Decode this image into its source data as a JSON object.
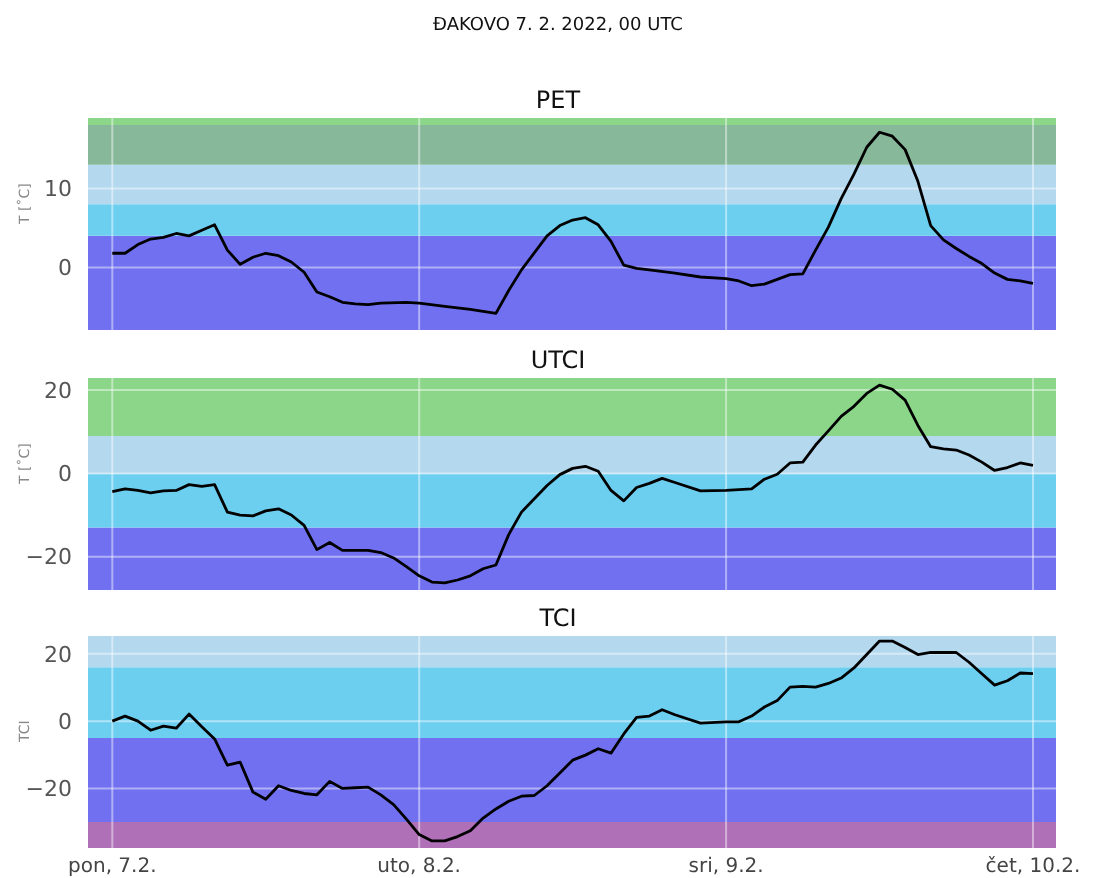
{
  "chart_data": [
    {
      "type": "line",
      "title": "PET",
      "ylabel": "T [˚C]",
      "annotations": [
        "ĐAKOVO 7. 2. 2022, 00 UTC"
      ],
      "tick_labels": "y",
      "grid": true,
      "x": [
        "2022-02-07T00:00",
        "2022-02-07T01:00",
        "2022-02-07T02:00",
        "2022-02-07T03:00",
        "2022-02-07T04:00",
        "2022-02-07T05:00",
        "2022-02-07T06:00",
        "2022-02-07T07:00",
        "2022-02-07T08:00",
        "2022-02-07T09:00",
        "2022-02-07T10:00",
        "2022-02-07T11:00",
        "2022-02-07T12:00",
        "2022-02-07T13:00",
        "2022-02-07T14:00",
        "2022-02-07T15:00",
        "2022-02-07T16:00",
        "2022-02-07T17:00",
        "2022-02-07T18:00",
        "2022-02-07T19:00",
        "2022-02-07T20:00",
        "2022-02-07T21:00",
        "2022-02-07T23:00",
        "2022-02-08T00:00",
        "2022-02-08T02:00",
        "2022-02-08T04:00",
        "2022-02-08T06:00",
        "2022-02-08T07:00",
        "2022-02-08T08:00",
        "2022-02-08T10:00",
        "2022-02-08T11:00",
        "2022-02-08T12:00",
        "2022-02-08T13:00",
        "2022-02-08T14:00",
        "2022-02-08T15:00",
        "2022-02-08T16:00",
        "2022-02-08T17:00",
        "2022-02-08T18:00",
        "2022-02-08T20:00",
        "2022-02-08T22:00",
        "2022-02-09T00:00",
        "2022-02-09T01:00",
        "2022-02-09T02:00",
        "2022-02-09T03:00",
        "2022-02-09T04:00",
        "2022-02-09T05:00",
        "2022-02-09T06:00",
        "2022-02-09T07:00",
        "2022-02-09T08:00",
        "2022-02-09T09:00",
        "2022-02-09T10:00",
        "2022-02-09T11:00",
        "2022-02-09T12:00",
        "2022-02-09T13:00",
        "2022-02-09T14:00",
        "2022-02-09T15:00",
        "2022-02-09T16:00",
        "2022-02-09T17:00",
        "2022-02-09T18:00",
        "2022-02-09T19:00",
        "2022-02-09T20:00",
        "2022-02-09T21:00",
        "2022-02-09T22:00",
        "2022-02-09T23:00",
        "2022-02-10T00:00"
      ],
      "series": [
        {
          "color": "#000000",
          "values": [
            1.8,
            1.8,
            2.9,
            3.6,
            3.8,
            4.3,
            4.0,
            4.7,
            5.4,
            2.2,
            0.4,
            1.3,
            1.8,
            1.5,
            0.7,
            -0.6,
            -3.1,
            -3.7,
            -4.4,
            -4.6,
            -4.7,
            -4.5,
            -4.4,
            -4.5,
            -4.9,
            -5.3,
            -5.8,
            -2.9,
            -0.3,
            4.0,
            5.3,
            6.0,
            6.3,
            5.4,
            3.3,
            0.3,
            -0.1,
            -0.3,
            -0.7,
            -1.2,
            -1.4,
            -1.7,
            -2.3,
            -2.1,
            -1.5,
            -0.9,
            -0.8,
            2.2,
            5.1,
            8.7,
            11.8,
            15.2,
            17.1,
            16.6,
            14.9,
            10.9,
            5.3,
            3.5,
            2.4,
            1.4,
            0.5,
            -0.7,
            -1.5,
            -1.7,
            -2.0
          ]
        }
      ],
      "xlim": [
        "2022-02-06T22:06",
        "2022-02-10T01:48"
      ],
      "xticks": [
        {
          "value": "2022-02-07T00:00",
          "label": null
        },
        {
          "value": "2022-02-08T00:00",
          "label": null
        },
        {
          "value": "2022-02-09T00:00",
          "label": null
        },
        {
          "value": "2022-02-10T00:00",
          "label": null
        }
      ],
      "ylim": [
        -7.9,
        18.9
      ],
      "yticks": [
        0,
        10
      ],
      "bands": [
        {
          "axis": "y",
          "from": -7.9,
          "to": 4,
          "color": "#7070f0"
        },
        {
          "axis": "y",
          "from": 4,
          "to": 8,
          "color": "#6dcff0"
        },
        {
          "axis": "y",
          "from": 8,
          "to": 13,
          "color": "#b4d8ee"
        },
        {
          "axis": "y",
          "from": 13,
          "to": 18,
          "color": "#88b89a"
        },
        {
          "axis": "y",
          "from": 18,
          "to": 18.9,
          "color": "#8cd68a"
        }
      ]
    },
    {
      "type": "line",
      "title": "UTCI",
      "ylabel": "T [˚C]",
      "tick_labels": "y",
      "grid": true,
      "x": [
        "2022-02-07T00:00",
        "2022-02-07T01:00",
        "2022-02-07T02:00",
        "2022-02-07T03:00",
        "2022-02-07T04:00",
        "2022-02-07T05:00",
        "2022-02-07T06:00",
        "2022-02-07T07:00",
        "2022-02-07T08:00",
        "2022-02-07T09:00",
        "2022-02-07T10:00",
        "2022-02-07T11:00",
        "2022-02-07T12:00",
        "2022-02-07T13:00",
        "2022-02-07T14:00",
        "2022-02-07T15:00",
        "2022-02-07T16:00",
        "2022-02-07T17:00",
        "2022-02-07T18:00",
        "2022-02-07T19:00",
        "2022-02-07T20:00",
        "2022-02-07T21:00",
        "2022-02-07T22:00",
        "2022-02-07T23:00",
        "2022-02-08T00:00",
        "2022-02-08T01:00",
        "2022-02-08T02:00",
        "2022-02-08T03:00",
        "2022-02-08T04:00",
        "2022-02-08T05:00",
        "2022-02-08T06:00",
        "2022-02-08T07:00",
        "2022-02-08T08:00",
        "2022-02-08T10:00",
        "2022-02-08T11:00",
        "2022-02-08T12:00",
        "2022-02-08T13:00",
        "2022-02-08T14:00",
        "2022-02-08T15:00",
        "2022-02-08T16:00",
        "2022-02-08T17:00",
        "2022-02-08T18:00",
        "2022-02-08T19:00",
        "2022-02-08T20:00",
        "2022-02-08T22:00",
        "2022-02-09T00:00",
        "2022-02-09T02:00",
        "2022-02-09T03:00",
        "2022-02-09T04:00",
        "2022-02-09T05:00",
        "2022-02-09T06:00",
        "2022-02-09T07:00",
        "2022-02-09T08:00",
        "2022-02-09T09:00",
        "2022-02-09T10:00",
        "2022-02-09T11:00",
        "2022-02-09T12:00",
        "2022-02-09T13:00",
        "2022-02-09T14:00",
        "2022-02-09T15:00",
        "2022-02-09T16:00",
        "2022-02-09T17:00",
        "2022-02-09T18:00",
        "2022-02-09T19:00",
        "2022-02-09T20:00",
        "2022-02-09T21:00",
        "2022-02-09T22:00",
        "2022-02-09T23:00",
        "2022-02-10T00:00"
      ],
      "series": [
        {
          "color": "#000000",
          "values": [
            -4.4,
            -3.7,
            -4.1,
            -4.7,
            -4.2,
            -4.1,
            -2.7,
            -3.1,
            -2.7,
            -9.3,
            -10.0,
            -10.2,
            -9.0,
            -8.5,
            -10.0,
            -12.5,
            -18.3,
            -16.6,
            -18.5,
            -18.5,
            -18.5,
            -19.0,
            -20.3,
            -22.4,
            -24.6,
            -26.1,
            -26.3,
            -25.6,
            -24.6,
            -22.9,
            -22.0,
            -14.7,
            -9.3,
            -2.9,
            -0.3,
            1.2,
            1.7,
            0.5,
            -4.1,
            -6.6,
            -3.4,
            -2.4,
            -1.2,
            -2.2,
            -4.2,
            -4.1,
            -3.7,
            -1.4,
            -0.2,
            2.5,
            2.7,
            6.8,
            10.2,
            13.7,
            16.1,
            19.2,
            21.2,
            20.2,
            17.6,
            11.5,
            6.4,
            5.9,
            5.6,
            4.4,
            2.7,
            0.7,
            1.4,
            2.5,
            1.9
          ]
        }
      ],
      "xlim": [
        "2022-02-06T22:06",
        "2022-02-10T01:48"
      ],
      "xticks": [
        {
          "value": "2022-02-07T00:00",
          "label": null
        },
        {
          "value": "2022-02-08T00:00",
          "label": null
        },
        {
          "value": "2022-02-09T00:00",
          "label": null
        },
        {
          "value": "2022-02-10T00:00",
          "label": null
        }
      ],
      "ylim": [
        -28,
        22.9
      ],
      "yticks": [
        -20,
        0,
        20
      ],
      "bands": [
        {
          "axis": "y",
          "from": -28,
          "to": -13,
          "color": "#7070f0"
        },
        {
          "axis": "y",
          "from": -13,
          "to": 0,
          "color": "#6dcff0"
        },
        {
          "axis": "y",
          "from": 0,
          "to": 9,
          "color": "#b4d8ee"
        },
        {
          "axis": "y",
          "from": 9,
          "to": 22.9,
          "color": "#8cd68a"
        }
      ]
    },
    {
      "type": "line",
      "title": "TCI",
      "ylabel": "TCI",
      "grid": true,
      "x": [
        "2022-02-07T00:00",
        "2022-02-07T01:00",
        "2022-02-07T02:00",
        "2022-02-07T03:00",
        "2022-02-07T04:00",
        "2022-02-07T05:00",
        "2022-02-07T06:00",
        "2022-02-07T07:00",
        "2022-02-07T08:00",
        "2022-02-07T09:00",
        "2022-02-07T10:00",
        "2022-02-07T11:00",
        "2022-02-07T12:00",
        "2022-02-07T13:00",
        "2022-02-07T14:00",
        "2022-02-07T15:00",
        "2022-02-07T16:00",
        "2022-02-07T17:00",
        "2022-02-07T18:00",
        "2022-02-07T19:00",
        "2022-02-07T20:00",
        "2022-02-07T21:00",
        "2022-02-07T22:00",
        "2022-02-07T23:00",
        "2022-02-08T00:00",
        "2022-02-08T01:00",
        "2022-02-08T02:00",
        "2022-02-08T03:00",
        "2022-02-08T04:00",
        "2022-02-08T05:00",
        "2022-02-08T06:00",
        "2022-02-08T07:00",
        "2022-02-08T08:00",
        "2022-02-08T09:00",
        "2022-02-08T10:00",
        "2022-02-08T11:00",
        "2022-02-08T12:00",
        "2022-02-08T13:00",
        "2022-02-08T14:00",
        "2022-02-08T15:00",
        "2022-02-08T16:00",
        "2022-02-08T17:00",
        "2022-02-08T18:00",
        "2022-02-08T19:00",
        "2022-02-08T20:00",
        "2022-02-08T22:00",
        "2022-02-09T00:00",
        "2022-02-09T01:00",
        "2022-02-09T02:00",
        "2022-02-09T03:00",
        "2022-02-09T04:00",
        "2022-02-09T05:00",
        "2022-02-09T06:00",
        "2022-02-09T07:00",
        "2022-02-09T08:00",
        "2022-02-09T09:00",
        "2022-02-09T10:00",
        "2022-02-09T11:00",
        "2022-02-09T12:00",
        "2022-02-09T13:00",
        "2022-02-09T14:00",
        "2022-02-09T15:00",
        "2022-02-09T16:00",
        "2022-02-09T18:00",
        "2022-02-09T19:00",
        "2022-02-09T20:00",
        "2022-02-09T21:00",
        "2022-02-09T22:00",
        "2022-02-09T23:00",
        "2022-02-10T00:00"
      ],
      "series": [
        {
          "color": "#000000",
          "values": [
            0,
            1.5,
            0,
            -2.7,
            -1.5,
            -2.1,
            2.1,
            -1.7,
            -5.3,
            -13.1,
            -12.2,
            -21.1,
            -23.2,
            -19.2,
            -20.6,
            -21.5,
            -21.9,
            -17.9,
            -20.0,
            -19.8,
            -19.6,
            -21.9,
            -24.8,
            -29.1,
            -33.7,
            -35.6,
            -35.6,
            -34.3,
            -32.6,
            -28.8,
            -26.1,
            -23.8,
            -22.3,
            -22.1,
            -19.2,
            -15.4,
            -11.6,
            -10.1,
            -8.2,
            -9.5,
            -3.8,
            1.1,
            1.5,
            3.4,
            1.9,
            -0.6,
            -0.2,
            -0.2,
            1.5,
            4.2,
            6.1,
            10.1,
            10.3,
            10.1,
            11.2,
            12.8,
            15.8,
            19.8,
            23.8,
            23.8,
            21.9,
            19.8,
            20.4,
            20.4,
            17.5,
            14.1,
            10.7,
            12.0,
            14.3,
            14.1
          ]
        }
      ],
      "xlim": [
        "2022-02-06T22:06",
        "2022-02-10T01:48"
      ],
      "xticks": [
        {
          "value": "2022-02-07T00:00",
          "label": "pon, 7.2."
        },
        {
          "value": "2022-02-08T00:00",
          "label": "uto, 8.2."
        },
        {
          "value": "2022-02-09T00:00",
          "label": "sri, 9.2."
        },
        {
          "value": "2022-02-10T00:00",
          "label": "čet, 10.2."
        }
      ],
      "ylim": [
        -37.7,
        25.3
      ],
      "yticks": [
        -20,
        0,
        20
      ],
      "bands": [
        {
          "axis": "y",
          "from": -37.7,
          "to": -30,
          "color": "#b070b8"
        },
        {
          "axis": "y",
          "from": -30,
          "to": -5,
          "color": "#7070f0"
        },
        {
          "axis": "y",
          "from": -5,
          "to": 16,
          "color": "#6dcff0"
        },
        {
          "axis": "y",
          "from": 16,
          "to": 25.3,
          "color": "#b4d8ee"
        }
      ]
    }
  ]
}
